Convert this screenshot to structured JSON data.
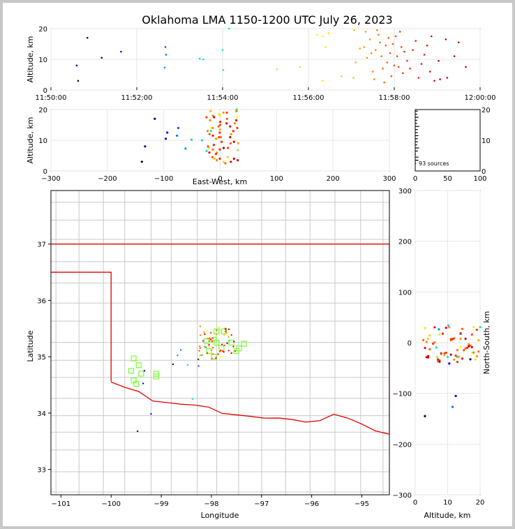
{
  "figure": {
    "title": "Oklahoma LMA 1150-1200 UTC July 26, 2023"
  },
  "chart_data": [
    {
      "id": "time_height",
      "type": "scatter",
      "ylabel": "Altitude, km",
      "xlim": [
        "11:50:00",
        "12:00:00"
      ],
      "ylim": [
        0,
        20
      ],
      "xticks": [
        "11:50:00",
        "11:52:00",
        "11:54:00",
        "11:56:00",
        "11:58:00",
        "12:00:00"
      ],
      "yticks": [
        "0",
        "10",
        "20"
      ],
      "points": [
        {
          "t": "11:50:38",
          "alt": 3.0,
          "color": "#000040"
        },
        {
          "t": "11:50:36",
          "alt": 8.0,
          "color": "#00007f"
        },
        {
          "t": "11:50:51",
          "alt": 17.0,
          "color": "#00007f"
        },
        {
          "t": "11:51:11",
          "alt": 10.5,
          "color": "#0000bb"
        },
        {
          "t": "11:51:38",
          "alt": 12.5,
          "color": "#0000ff"
        },
        {
          "t": "11:52:40",
          "alt": 14.0,
          "color": "#0050ff"
        },
        {
          "t": "11:52:41",
          "alt": 11.5,
          "color": "#0070ff"
        },
        {
          "t": "11:52:39",
          "alt": 7.3,
          "color": "#0090ff"
        },
        {
          "t": "11:53:28",
          "alt": 10.2,
          "color": "#00c8ff"
        },
        {
          "t": "11:53:33",
          "alt": 10.0,
          "color": "#00e0e0"
        },
        {
          "t": "11:54:00",
          "alt": 13.0,
          "color": "#00e8c0"
        },
        {
          "t": "11:54:01",
          "alt": 6.5,
          "color": "#00f0a0"
        },
        {
          "t": "11:54:09",
          "alt": 20.0,
          "color": "#00ff80"
        },
        {
          "t": "11:55:16",
          "alt": 6.8,
          "color": "#80ff40"
        },
        {
          "t": "11:55:48",
          "alt": 7.5,
          "color": "#c0ff00"
        },
        {
          "t": "11:56:12",
          "alt": 18.0,
          "color": "#e0ff00"
        },
        {
          "t": "11:56:20",
          "alt": 17.5,
          "color": "#ffff00"
        },
        {
          "t": "11:56:24",
          "alt": 14.0,
          "color": "#ffee00"
        },
        {
          "t": "11:56:28",
          "alt": 18.5,
          "color": "#ffe000"
        },
        {
          "t": "11:56:20",
          "alt": 3.0,
          "color": "#ffe000"
        },
        {
          "t": "11:56:46",
          "alt": 4.5,
          "color": "#ffd000"
        },
        {
          "t": "11:57:03",
          "alt": 4.0,
          "color": "#ffc000"
        },
        {
          "t": "11:57:04",
          "alt": 19.5,
          "color": "#ffb000"
        },
        {
          "t": "11:57:06",
          "alt": 9.0,
          "color": "#ffa800"
        },
        {
          "t": "11:57:12",
          "alt": 13.5,
          "color": "#ffa000"
        },
        {
          "t": "11:57:18",
          "alt": 14.0,
          "color": "#ff9800"
        },
        {
          "t": "11:57:20",
          "alt": 19.0,
          "color": "#ff9000"
        },
        {
          "t": "11:57:22",
          "alt": 10.5,
          "color": "#ff9000"
        },
        {
          "t": "11:57:26",
          "alt": 16.5,
          "color": "#ff8800"
        },
        {
          "t": "11:57:28",
          "alt": 12.0,
          "color": "#ff8800"
        },
        {
          "t": "11:57:30",
          "alt": 6.0,
          "color": "#ff8000"
        },
        {
          "t": "11:57:32",
          "alt": 3.5,
          "color": "#ff8000"
        },
        {
          "t": "11:57:34",
          "alt": 13.0,
          "color": "#ff7800"
        },
        {
          "t": "11:57:36",
          "alt": 19.5,
          "color": "#ff7800"
        },
        {
          "t": "11:57:38",
          "alt": 18.0,
          "color": "#ff7000"
        },
        {
          "t": "11:57:40",
          "alt": 15.5,
          "color": "#ff7000"
        },
        {
          "t": "11:57:42",
          "alt": 11.0,
          "color": "#ff6800"
        },
        {
          "t": "11:57:44",
          "alt": 7.0,
          "color": "#ff6800"
        },
        {
          "t": "11:57:46",
          "alt": 2.5,
          "color": "#ff6000"
        },
        {
          "t": "11:57:48",
          "alt": 14.5,
          "color": "#ff6000"
        },
        {
          "t": "11:57:50",
          "alt": 9.0,
          "color": "#ff5800"
        },
        {
          "t": "11:57:52",
          "alt": 17.0,
          "color": "#ff5800"
        },
        {
          "t": "11:57:54",
          "alt": 12.0,
          "color": "#ff5000"
        },
        {
          "t": "11:57:56",
          "alt": 4.5,
          "color": "#ff5000"
        },
        {
          "t": "11:57:58",
          "alt": 15.0,
          "color": "#ff4800"
        },
        {
          "t": "11:58:00",
          "alt": 8.0,
          "color": "#ff4800"
        },
        {
          "t": "11:58:02",
          "alt": 17.5,
          "color": "#ff4000"
        },
        {
          "t": "11:58:04",
          "alt": 11.0,
          "color": "#ff4000"
        },
        {
          "t": "11:58:06",
          "alt": 7.5,
          "color": "#ff3800"
        },
        {
          "t": "11:58:08",
          "alt": 19.0,
          "color": "#ff3800"
        },
        {
          "t": "11:58:10",
          "alt": 14.0,
          "color": "#ff3000"
        },
        {
          "t": "11:58:12",
          "alt": 5.5,
          "color": "#ff3000"
        },
        {
          "t": "11:58:14",
          "alt": 12.5,
          "color": "#ff2800"
        },
        {
          "t": "11:58:18",
          "alt": 9.5,
          "color": "#ff2800"
        },
        {
          "t": "11:58:22",
          "alt": 7.0,
          "color": "#ff2000"
        },
        {
          "t": "11:58:26",
          "alt": 13.0,
          "color": "#ff2000"
        },
        {
          "t": "11:58:30",
          "alt": 16.0,
          "color": "#ff1800"
        },
        {
          "t": "11:58:34",
          "alt": 4.0,
          "color": "#ff1800"
        },
        {
          "t": "11:58:38",
          "alt": 8.5,
          "color": "#ff1000"
        },
        {
          "t": "11:58:42",
          "alt": 11.5,
          "color": "#ff1000"
        },
        {
          "t": "11:58:46",
          "alt": 14.5,
          "color": "#ee0000"
        },
        {
          "t": "11:58:50",
          "alt": 6.0,
          "color": "#ee0000"
        },
        {
          "t": "11:58:52",
          "alt": 17.5,
          "color": "#e00000"
        },
        {
          "t": "11:58:56",
          "alt": 3.0,
          "color": "#e00000"
        },
        {
          "t": "11:59:02",
          "alt": 9.5,
          "color": "#d00000"
        },
        {
          "t": "11:59:04",
          "alt": 3.5,
          "color": "#d00000"
        },
        {
          "t": "11:59:12",
          "alt": 16.5,
          "color": "#c00000"
        },
        {
          "t": "11:59:14",
          "alt": 4.0,
          "color": "#c00000"
        },
        {
          "t": "11:59:24",
          "alt": 11.0,
          "color": "#b00000"
        },
        {
          "t": "11:59:30",
          "alt": 15.5,
          "color": "#b00000"
        },
        {
          "t": "11:59:40",
          "alt": 7.5,
          "color": "#a00000"
        }
      ]
    },
    {
      "id": "ew_height",
      "type": "scatter",
      "xlabel": "East-West, km",
      "ylabel": "Altitude, km",
      "xlim": [
        -300,
        300
      ],
      "ylim": [
        0,
        20
      ],
      "xticks": [
        "−300",
        "−200",
        "−100",
        "0",
        "100",
        "200",
        "300"
      ],
      "yticks": [
        "0",
        "10",
        "20"
      ]
    },
    {
      "id": "alt_histogram",
      "type": "bar",
      "xlim": [
        0,
        100
      ],
      "ylim": [
        0,
        20
      ],
      "xticks": [
        "0",
        "50",
        "100"
      ],
      "yticks": [
        "0",
        "10",
        "20"
      ],
      "annotation": "93 sources"
    },
    {
      "id": "plan_view",
      "type": "scatter",
      "xlabel": "Longitude",
      "ylabel": "Latitude",
      "xlim": [
        -101.2,
        -94.45
      ],
      "ylim": [
        32.55,
        37.95
      ],
      "xticks": [
        "−101",
        "−100",
        "−99",
        "−98",
        "−97",
        "−96",
        "−95"
      ],
      "yticks": [
        "33",
        "34",
        "35",
        "36",
        "37"
      ],
      "stations_color": "#80ff40",
      "stations": [
        [
          -99.55,
          34.97
        ],
        [
          -99.45,
          34.85
        ],
        [
          -99.6,
          34.75
        ],
        [
          -99.4,
          34.7
        ],
        [
          -99.55,
          34.58
        ],
        [
          -99.5,
          34.52
        ],
        [
          -99.1,
          34.7
        ],
        [
          -99.1,
          34.65
        ],
        [
          -97.9,
          35.45
        ],
        [
          -97.75,
          35.45
        ],
        [
          -97.95,
          35.3
        ],
        [
          -98.1,
          35.28
        ],
        [
          -97.9,
          35.25
        ],
        [
          -98.05,
          35.1
        ],
        [
          -97.8,
          35.15
        ],
        [
          -97.95,
          35.0
        ],
        [
          -97.6,
          35.25
        ],
        [
          -97.5,
          35.1
        ],
        [
          -97.45,
          35.15
        ],
        [
          -97.35,
          35.23
        ]
      ]
    },
    {
      "id": "ns_height",
      "type": "scatter",
      "xlabel": "Altitude, km",
      "ylabel": "North-South, km",
      "xlim": [
        0,
        20
      ],
      "ylim": [
        -300,
        300
      ],
      "xticks": [
        "0",
        "10",
        "20"
      ],
      "yticks": [
        "−300",
        "−200",
        "−100",
        "0",
        "100",
        "200",
        "300"
      ]
    }
  ]
}
